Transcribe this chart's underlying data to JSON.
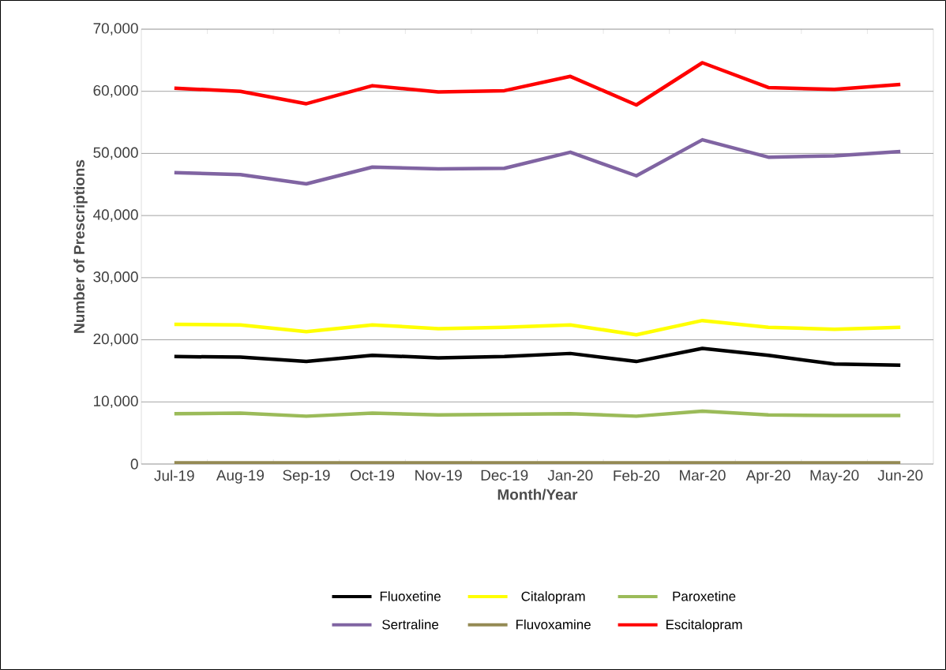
{
  "chart_data": {
    "type": "line",
    "xlabel": "Month/Year",
    "ylabel": "Number of Prescriptions",
    "categories": [
      "Jul-19",
      "Aug-19",
      "Sep-19",
      "Oct-19",
      "Nov-19",
      "Dec-19",
      "Jan-20",
      "Feb-20",
      "Mar-20",
      "Apr-20",
      "May-20",
      "Jun-20"
    ],
    "ylim": [
      0,
      70000
    ],
    "yticks": [
      {
        "value": 0,
        "label": "0"
      },
      {
        "value": 10000,
        "label": "10,000"
      },
      {
        "value": 20000,
        "label": "20,000"
      },
      {
        "value": 30000,
        "label": "30,000"
      },
      {
        "value": 40000,
        "label": "40,000"
      },
      {
        "value": 50000,
        "label": "50,000"
      },
      {
        "value": 60000,
        "label": "60,000"
      },
      {
        "value": 70000,
        "label": "70,000"
      }
    ],
    "grid": "y",
    "legend": "bottom",
    "marker": "none",
    "line_style": "solid",
    "series": [
      {
        "name": "Fluoxetine",
        "color": "#000000",
        "values": [
          17300,
          17200,
          16500,
          17500,
          17100,
          17300,
          17800,
          16500,
          18600,
          17500,
          16100,
          15900
        ]
      },
      {
        "name": "Citalopram",
        "color": "#ffff00",
        "values": [
          22500,
          22400,
          21300,
          22400,
          21800,
          22000,
          22400,
          20800,
          23100,
          22000,
          21700,
          22000
        ]
      },
      {
        "name": "Paroxetine",
        "color": "#9bbb59",
        "values": [
          8100,
          8200,
          7700,
          8200,
          7900,
          8000,
          8100,
          7700,
          8500,
          7900,
          7800,
          7800
        ]
      },
      {
        "name": "Sertraline",
        "color": "#8064a2",
        "values": [
          46900,
          46600,
          45100,
          47800,
          47500,
          47600,
          50200,
          46400,
          52200,
          49400,
          49600,
          50300
        ]
      },
      {
        "name": "Fluvoxamine",
        "color": "#948a54",
        "values": [
          200,
          200,
          200,
          200,
          200,
          200,
          200,
          200,
          200,
          200,
          200,
          200
        ]
      },
      {
        "name": "Escitalopram",
        "color": "#ff0000",
        "values": [
          60500,
          60000,
          58000,
          60900,
          59900,
          60100,
          62400,
          57800,
          64600,
          60600,
          60300,
          61100
        ]
      }
    ]
  }
}
